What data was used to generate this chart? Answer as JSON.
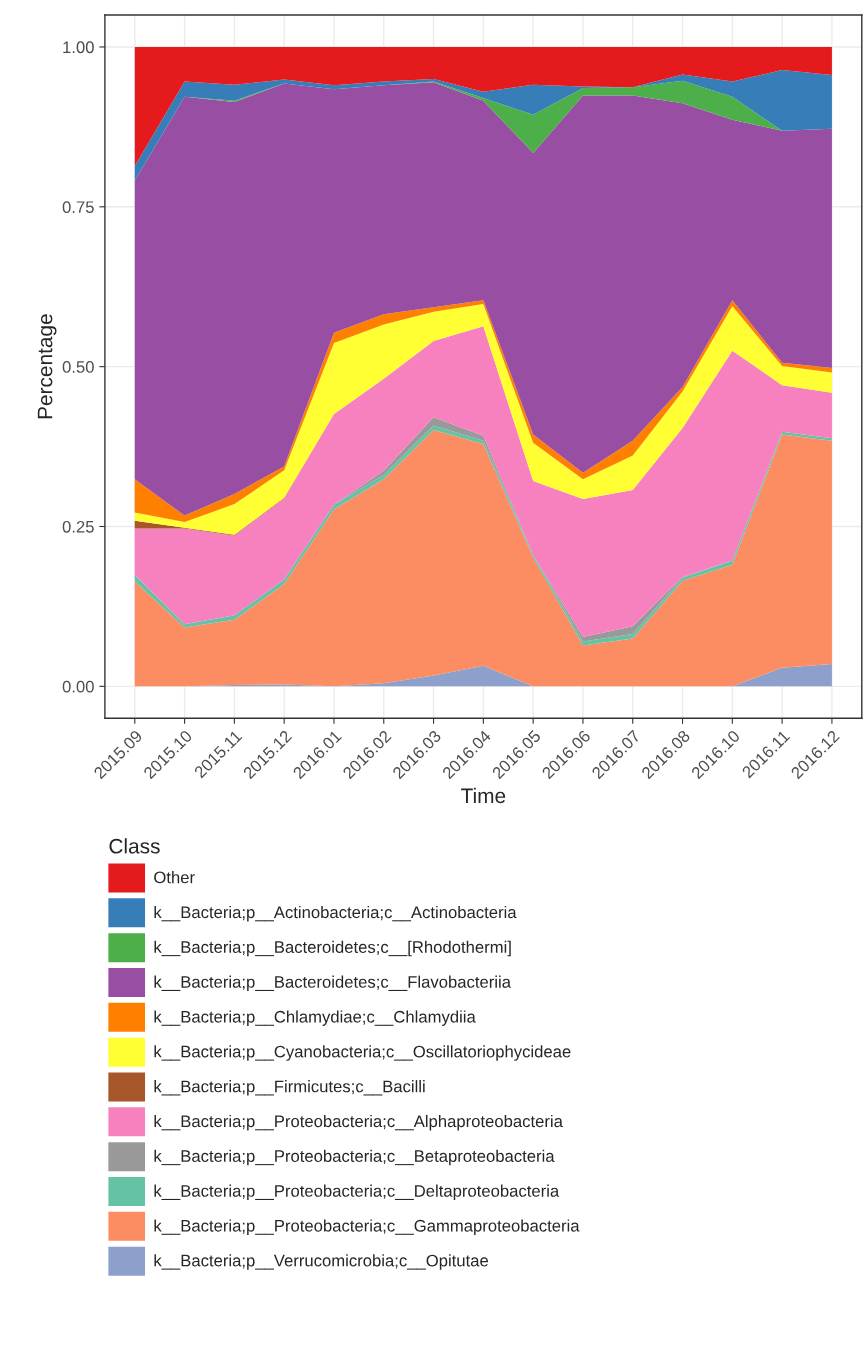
{
  "chart_data": {
    "type": "area",
    "stacked": true,
    "xlabel": "Time",
    "ylabel": "Percentage",
    "legend_title": "Class",
    "legend": "bottom",
    "grid": true,
    "categories": [
      "2015.09",
      "2015.10",
      "2015.11",
      "2015.12",
      "2016.01",
      "2016.02",
      "2016.03",
      "2016.04",
      "2016.05",
      "2016.06",
      "2016.07",
      "2016.08",
      "2016.10",
      "2016.11",
      "2016.12"
    ],
    "ylim": [
      -0.05,
      1.05
    ],
    "yticks": [
      {
        "value": 0,
        "label": "0.00"
      },
      {
        "value": 0.25,
        "label": "0.25"
      },
      {
        "value": 0.5,
        "label": "0.50"
      },
      {
        "value": 0.75,
        "label": "0.75"
      },
      {
        "value": 1,
        "label": "1.00"
      }
    ],
    "series": [
      {
        "name": "k__Bacteria;p__Verrucomicrobia;c__Opitutae",
        "color": "#8da0cb",
        "values": [
          0,
          0,
          0.002,
          0.003,
          0,
          0.005,
          0.017,
          0.032,
          0,
          0,
          0,
          0,
          0,
          0.029,
          0.035
        ]
      },
      {
        "name": "k__Bacteria;p__Proteobacteria;c__Gammaproteobacteria",
        "color": "#fc8d62",
        "values": [
          0.164,
          0.092,
          0.102,
          0.157,
          0.277,
          0.319,
          0.384,
          0.347,
          0.201,
          0.064,
          0.075,
          0.165,
          0.19,
          0.365,
          0.349
        ]
      },
      {
        "name": "k__Bacteria;p__Proteobacteria;c__Deltaproteobacteria",
        "color": "#66c2a5",
        "values": [
          0.01,
          0.005,
          0.007,
          0.007,
          0.007,
          0.007,
          0.007,
          0.005,
          0.004,
          0.006,
          0.007,
          0.005,
          0.007,
          0.004,
          0.004
        ]
      },
      {
        "name": "k__Bacteria;p__Proteobacteria;c__Betaproteobacteria",
        "color": "#999999",
        "values": [
          0,
          0,
          0,
          0,
          0,
          0.006,
          0.013,
          0.008,
          0,
          0.007,
          0.012,
          0.001,
          0,
          0,
          0
        ]
      },
      {
        "name": "k__Bacteria;p__Proteobacteria;c__Alphaproteobacteria",
        "color": "#f781bf",
        "values": [
          0.073,
          0.15,
          0.125,
          0.127,
          0.142,
          0.144,
          0.119,
          0.171,
          0.116,
          0.216,
          0.213,
          0.233,
          0.328,
          0.073,
          0.071
        ]
      },
      {
        "name": "k__Bacteria;p__Firmicutes;c__Bacilli",
        "color": "#a65628",
        "values": [
          0.012,
          0.001,
          0.001,
          0.001,
          0,
          0,
          0,
          0,
          0,
          0,
          0,
          0,
          0,
          0,
          0
        ]
      },
      {
        "name": "k__Bacteria;p__Cyanobacteria;c__Oscillatoriophycideae",
        "color": "#ffff33",
        "values": [
          0.013,
          0.009,
          0.048,
          0.043,
          0.111,
          0.085,
          0.046,
          0.035,
          0.06,
          0.031,
          0.054,
          0.057,
          0.07,
          0.03,
          0.032
        ]
      },
      {
        "name": "k__Bacteria;p__Chlamydiae;c__Chlamydiia",
        "color": "#ff7f00",
        "values": [
          0.052,
          0.01,
          0.016,
          0.006,
          0.016,
          0.016,
          0.007,
          0.006,
          0.013,
          0.01,
          0.023,
          0.007,
          0.009,
          0.005,
          0.007
        ]
      },
      {
        "name": "k__Bacteria;p__Bacteroidetes;c__Flavobacteriia",
        "color": "#984ea3",
        "values": [
          0.467,
          0.655,
          0.613,
          0.599,
          0.381,
          0.358,
          0.352,
          0.312,
          0.44,
          0.59,
          0.54,
          0.444,
          0.282,
          0.363,
          0.374
        ]
      },
      {
        "name": "k__Bacteria;p__Bacteroidetes;c__[Rhodothermi]",
        "color": "#4daf4a",
        "values": [
          0,
          0,
          0.002,
          0,
          0,
          0,
          0.001,
          0.004,
          0.06,
          0.012,
          0.013,
          0.035,
          0.036,
          0,
          0
        ]
      },
      {
        "name": "k__Bacteria;p__Actinobacteria;c__Actinobacteria",
        "color": "#377eb8",
        "values": [
          0.023,
          0.024,
          0.025,
          0.006,
          0.006,
          0.006,
          0.004,
          0.01,
          0.047,
          0.002,
          0,
          0.01,
          0.024,
          0.095,
          0.084
        ]
      },
      {
        "name": "Other",
        "color": "#e41a1c",
        "values": [
          0.186,
          0.054,
          0.059,
          0.051,
          0.06,
          0.054,
          0.05,
          0.07,
          0.059,
          0.062,
          0.063,
          0.043,
          0.054,
          0.036,
          0.044
        ]
      }
    ]
  }
}
